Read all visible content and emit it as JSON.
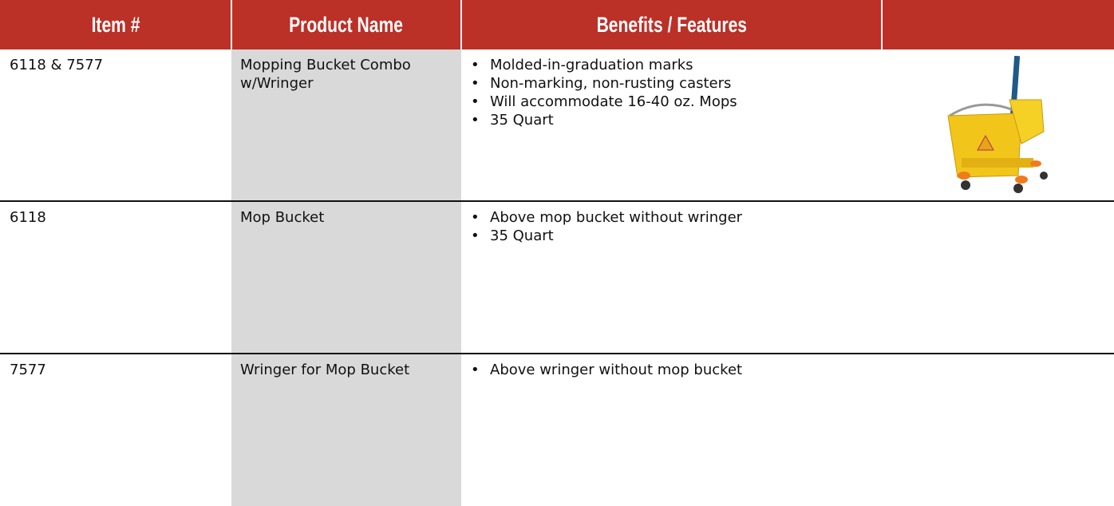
{
  "table": {
    "headers": [
      "Item #",
      "Product Name",
      "Benefits / Features"
    ],
    "rows": [
      {
        "item": "6118 & 7577",
        "name": "Mopping Bucket Combo w/Wringer",
        "features": [
          "Molded-in-graduation marks",
          "Non-marking, non-rusting casters",
          "Will accommodate 16-40 oz. Mops",
          "35 Quart"
        ]
      },
      {
        "item": "6118",
        "name": "Mop Bucket",
        "features": [
          "Above mop bucket without wringer",
          "35 Quart"
        ]
      },
      {
        "item": "7577",
        "name": "Wringer for Mop Bucket",
        "features": [
          "Above wringer without mop bucket"
        ]
      }
    ]
  }
}
